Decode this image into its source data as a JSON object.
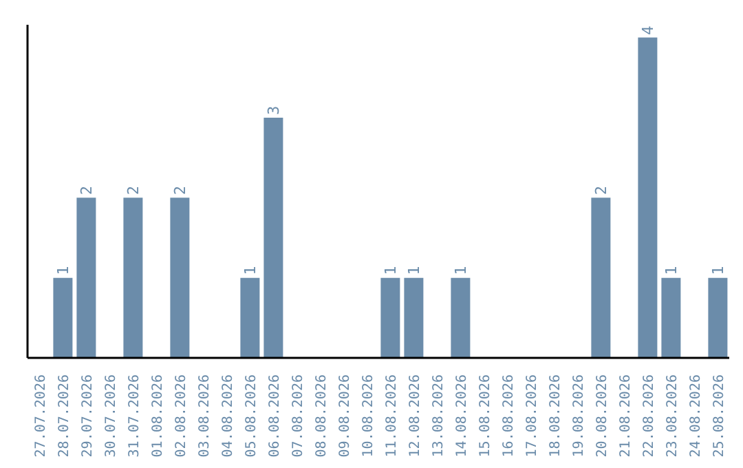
{
  "chart_data": {
    "type": "bar",
    "categories": [
      "27.07.2026",
      "28.07.2026",
      "29.07.2026",
      "30.07.2026",
      "31.07.2026",
      "01.08.2026",
      "02.08.2026",
      "03.08.2026",
      "04.08.2026",
      "05.08.2026",
      "06.08.2026",
      "07.08.2026",
      "08.08.2026",
      "09.08.2026",
      "10.08.2026",
      "11.08.2026",
      "12.08.2026",
      "13.08.2026",
      "14.08.2026",
      "15.08.2026",
      "16.08.2026",
      "17.08.2026",
      "18.08.2026",
      "19.08.2026",
      "20.08.2026",
      "21.08.2026",
      "22.08.2026",
      "23.08.2026",
      "24.08.2026",
      "25.08.2026"
    ],
    "values": [
      0,
      1,
      2,
      0,
      2,
      0,
      2,
      0,
      0,
      1,
      3,
      0,
      0,
      0,
      0,
      1,
      1,
      0,
      1,
      0,
      0,
      0,
      0,
      0,
      2,
      0,
      4,
      1,
      0,
      1
    ],
    "value_labels": [
      null,
      "1",
      "2",
      null,
      "2",
      null,
      "2",
      null,
      null,
      "1",
      "3",
      null,
      null,
      null,
      null,
      "1",
      "1",
      null,
      "1",
      null,
      null,
      null,
      null,
      null,
      "2",
      null,
      "4",
      "1",
      null,
      "1"
    ],
    "color": "#6b8caa",
    "tick_labels": "x",
    "grid": false,
    "legend": false
  }
}
